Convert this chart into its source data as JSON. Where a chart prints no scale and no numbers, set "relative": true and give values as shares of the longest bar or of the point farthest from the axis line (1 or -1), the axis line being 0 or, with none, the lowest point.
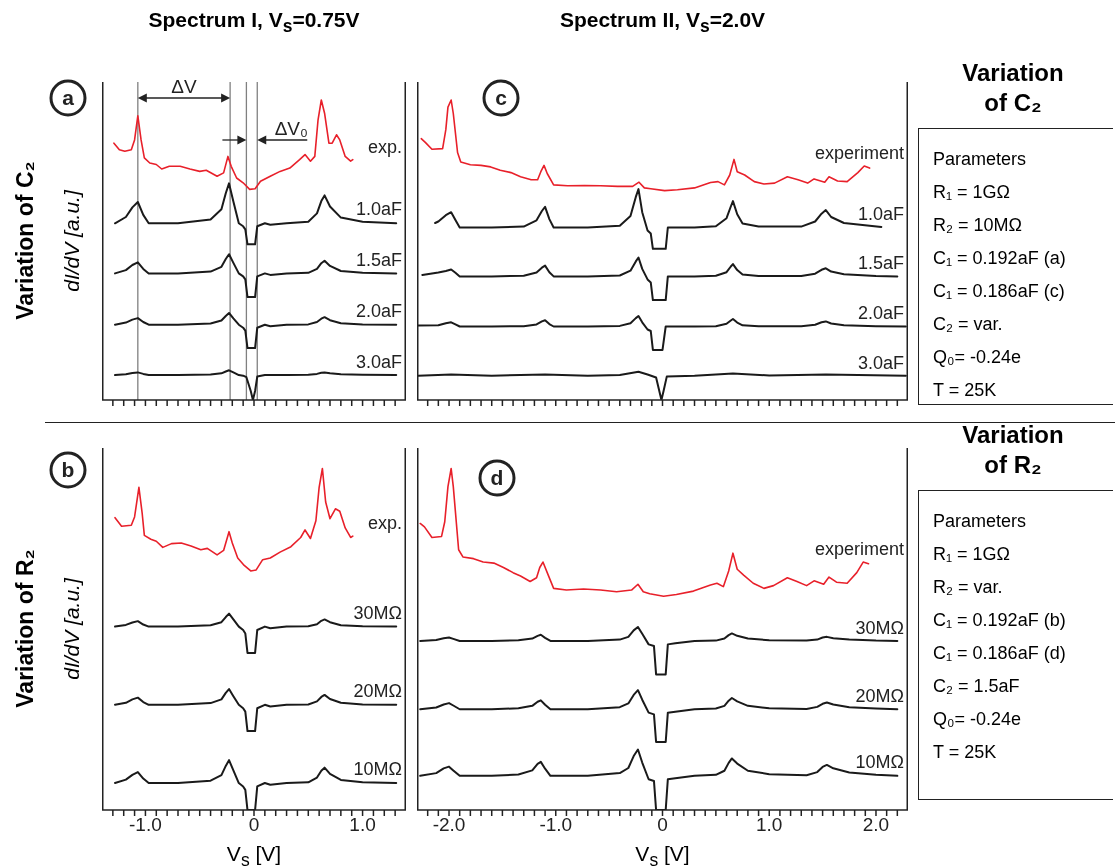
{
  "chart_data": [
    {
      "type": "line",
      "title": "Spectrum I, V$_{s}$=0.75V",
      "ylabel": "dI/dV [a.u.]",
      "relative": true,
      "tick_labels": false,
      "xlim": [
        -1.4,
        1.4
      ],
      "xticks": [
        {
          "value": -1.3,
          "label": null
        },
        {
          "value": -1.2,
          "label": null
        },
        {
          "value": -1.1,
          "label": null
        },
        {
          "value": -1,
          "label": null
        },
        {
          "value": -0.9,
          "label": null
        },
        {
          "value": -0.8,
          "label": null
        },
        {
          "value": -0.7,
          "label": null
        },
        {
          "value": -0.6,
          "label": null
        },
        {
          "value": -0.5,
          "label": null
        },
        {
          "value": -0.4,
          "label": null
        },
        {
          "value": -0.3,
          "label": null
        },
        {
          "value": -0.2,
          "label": null
        },
        {
          "value": -0.1,
          "label": null
        },
        {
          "value": 0,
          "label": null
        },
        {
          "value": 0.1,
          "label": null
        },
        {
          "value": 0.2,
          "label": null
        },
        {
          "value": 0.3,
          "label": null
        },
        {
          "value": 0.4,
          "label": null
        },
        {
          "value": 0.5,
          "label": null
        },
        {
          "value": 0.6,
          "label": null
        },
        {
          "value": 0.7,
          "label": null
        },
        {
          "value": 0.8,
          "label": null
        },
        {
          "value": 0.9,
          "label": null
        },
        {
          "value": 1,
          "label": null
        },
        {
          "value": 1.1,
          "label": null
        },
        {
          "value": 1.2,
          "label": null
        },
        {
          "value": 1.3,
          "label": null
        }
      ],
      "annotations": [
        "a",
        "Variation of C₂",
        "ΔV",
        "ΔV₀"
      ],
      "ref_lines": [
        {
          "axis": "x",
          "value": -1.07,
          "label": null,
          "color": "#808080"
        },
        {
          "axis": "x",
          "value": -0.22,
          "label": null,
          "color": "#808080"
        },
        {
          "axis": "x",
          "value": -0.07,
          "label": null,
          "color": "#808080"
        },
        {
          "axis": "x",
          "value": 0.03,
          "label": null,
          "color": "#808080"
        }
      ],
      "series": [
        {
          "name": "exp.",
          "color": "#e8202a",
          "x": [
            -1.29,
            -1.24,
            -1.19,
            -1.13,
            -1.1,
            -1.07,
            -1.04,
            -1.01,
            -0.96,
            -0.9,
            -0.85,
            -0.78,
            -0.68,
            -0.59,
            -0.5,
            -0.44,
            -0.34,
            -0.28,
            -0.24,
            -0.21,
            -0.16,
            -0.1,
            -0.04,
            0.01,
            0.06,
            0.15,
            0.24,
            0.33,
            0.42,
            0.47,
            0.52,
            0.56,
            0.59,
            0.62,
            0.65,
            0.69,
            0.72,
            0.76,
            0.79,
            0.84,
            0.89,
            0.91
          ],
          "values": [
            0.856,
            0.834,
            0.829,
            0.834,
            0.867,
            0.947,
            0.867,
            0.807,
            0.79,
            0.785,
            0.77,
            0.779,
            0.779,
            0.77,
            0.762,
            0.766,
            0.746,
            0.757,
            0.812,
            0.779,
            0.74,
            0.724,
            0.702,
            0.704,
            0.729,
            0.746,
            0.762,
            0.773,
            0.801,
            0.818,
            0.796,
            0.812,
            0.934,
            1.0,
            0.956,
            0.856,
            0.856,
            0.884,
            0.867,
            0.812,
            0.796,
            0.801
          ]
        },
        {
          "name": "1.0aF",
          "color": "#1a1a1a",
          "x": [
            -1.28,
            -1.18,
            -1.12,
            -1.07,
            -1.02,
            -0.97,
            -0.7,
            -0.4,
            -0.3,
            -0.26,
            -0.23,
            -0.19,
            -0.14,
            -0.1,
            -0.08,
            -0.06,
            0.01,
            0.03,
            0.1,
            0.15,
            0.3,
            0.5,
            0.58,
            0.62,
            0.65,
            0.7,
            0.8,
            1.0,
            1.31
          ],
          "values": [
            0.589,
            0.61,
            0.642,
            0.66,
            0.617,
            0.589,
            0.589,
            0.602,
            0.636,
            0.689,
            0.722,
            0.662,
            0.589,
            0.579,
            0.569,
            0.519,
            0.519,
            0.579,
            0.589,
            0.584,
            0.589,
            0.594,
            0.622,
            0.663,
            0.682,
            0.645,
            0.608,
            0.594,
            0.589
          ]
        },
        {
          "name": "1.5aF",
          "color": "#1a1a1a",
          "x": [
            -1.28,
            -1.18,
            -1.12,
            -1.07,
            -1.02,
            -0.97,
            -0.7,
            -0.4,
            -0.3,
            -0.26,
            -0.23,
            -0.19,
            -0.14,
            -0.1,
            -0.08,
            -0.06,
            0.01,
            0.03,
            0.1,
            0.15,
            0.3,
            0.5,
            0.58,
            0.62,
            0.65,
            0.7,
            0.8,
            1.0,
            1.31
          ],
          "values": [
            0.422,
            0.433,
            0.45,
            0.459,
            0.437,
            0.422,
            0.422,
            0.428,
            0.444,
            0.47,
            0.486,
            0.457,
            0.422,
            0.412,
            0.402,
            0.343,
            0.343,
            0.412,
            0.422,
            0.417,
            0.422,
            0.424,
            0.437,
            0.456,
            0.464,
            0.447,
            0.43,
            0.424,
            0.422
          ]
        },
        {
          "name": "2.0aF",
          "color": "#1a1a1a",
          "x": [
            -1.28,
            -1.18,
            -1.12,
            -1.07,
            -1.02,
            -0.97,
            -0.7,
            -0.4,
            -0.3,
            -0.26,
            -0.23,
            -0.19,
            -0.14,
            -0.1,
            -0.08,
            -0.06,
            0.01,
            0.03,
            0.1,
            0.15,
            0.3,
            0.5,
            0.58,
            0.62,
            0.65,
            0.7,
            0.8,
            1.0,
            1.31
          ],
          "values": [
            0.251,
            0.258,
            0.268,
            0.273,
            0.26,
            0.251,
            0.251,
            0.255,
            0.265,
            0.28,
            0.29,
            0.272,
            0.251,
            0.241,
            0.231,
            0.173,
            0.173,
            0.241,
            0.251,
            0.246,
            0.251,
            0.252,
            0.26,
            0.271,
            0.276,
            0.266,
            0.256,
            0.252,
            0.251
          ]
        },
        {
          "name": "3.0aF",
          "color": "#1a1a1a",
          "x": [
            -1.28,
            -1.18,
            -1.12,
            -1.07,
            -1.02,
            -0.97,
            -0.7,
            -0.4,
            -0.3,
            -0.26,
            -0.23,
            -0.19,
            -0.14,
            -0.1,
            -0.07,
            -0.03,
            -0.01,
            0.01,
            0.03,
            0.1,
            0.3,
            0.5,
            0.58,
            0.62,
            0.65,
            0.7,
            0.8,
            1.0,
            1.31
          ],
          "values": [
            0.083,
            0.086,
            0.09,
            0.092,
            0.087,
            0.083,
            0.083,
            0.085,
            0.089,
            0.095,
            0.099,
            0.092,
            0.083,
            0.081,
            0.076,
            0.03,
            0,
            0.03,
            0.078,
            0.083,
            0.083,
            0.084,
            0.087,
            0.091,
            0.092,
            0.089,
            0.086,
            0.084,
            0.083
          ]
        }
      ]
    },
    {
      "type": "line",
      "title": "Spectrum II, V$_{s}$=2.0V",
      "relative": true,
      "tick_labels": false,
      "xlim": [
        -2.3,
        2.3
      ],
      "xticks": [
        {
          "value": -2.2,
          "label": null
        },
        {
          "value": -2.1,
          "label": null
        },
        {
          "value": -2,
          "label": null
        },
        {
          "value": -1.9,
          "label": null
        },
        {
          "value": -1.8,
          "label": null
        },
        {
          "value": -1.7,
          "label": null
        },
        {
          "value": -1.6,
          "label": null
        },
        {
          "value": -1.5,
          "label": null
        },
        {
          "value": -1.4,
          "label": null
        },
        {
          "value": -1.3,
          "label": null
        },
        {
          "value": -1.2,
          "label": null
        },
        {
          "value": -1.1,
          "label": null
        },
        {
          "value": -1,
          "label": null
        },
        {
          "value": -0.9,
          "label": null
        },
        {
          "value": -0.8,
          "label": null
        },
        {
          "value": -0.7,
          "label": null
        },
        {
          "value": -0.6,
          "label": null
        },
        {
          "value": -0.5,
          "label": null
        },
        {
          "value": -0.4,
          "label": null
        },
        {
          "value": -0.3,
          "label": null
        },
        {
          "value": -0.2,
          "label": null
        },
        {
          "value": -0.1,
          "label": null
        },
        {
          "value": 0,
          "label": null
        },
        {
          "value": 0.1,
          "label": null
        },
        {
          "value": 0.2,
          "label": null
        },
        {
          "value": 0.3,
          "label": null
        },
        {
          "value": 0.4,
          "label": null
        },
        {
          "value": 0.5,
          "label": null
        },
        {
          "value": 0.6,
          "label": null
        },
        {
          "value": 0.7,
          "label": null
        },
        {
          "value": 0.8,
          "label": null
        },
        {
          "value": 0.9,
          "label": null
        },
        {
          "value": 1,
          "label": null
        },
        {
          "value": 1.1,
          "label": null
        },
        {
          "value": 1.2,
          "label": null
        },
        {
          "value": 1.3,
          "label": null
        },
        {
          "value": 1.4,
          "label": null
        },
        {
          "value": 1.5,
          "label": null
        },
        {
          "value": 1.6,
          "label": null
        },
        {
          "value": 1.7,
          "label": null
        },
        {
          "value": 1.8,
          "label": null
        },
        {
          "value": 1.9,
          "label": null
        },
        {
          "value": 2,
          "label": null
        },
        {
          "value": 2.1,
          "label": null
        },
        {
          "value": 2.2,
          "label": null
        }
      ],
      "annotations": [
        "c"
      ],
      "series": [
        {
          "name": "experiment",
          "color": "#e8202a",
          "x": [
            -2.26,
            -2.22,
            -2.16,
            -2.06,
            -2.03,
            -2.01,
            -1.98,
            -1.96,
            -1.92,
            -1.89,
            -1.8,
            -1.7,
            -1.61,
            -1.52,
            -1.42,
            -1.33,
            -1.23,
            -1.17,
            -1.14,
            -1.11,
            -1.08,
            -1.02,
            -0.89,
            -0.73,
            -0.58,
            -0.42,
            -0.28,
            -0.22,
            -0.17,
            -0.11,
            0.02,
            0.14,
            0.3,
            0.45,
            0.52,
            0.58,
            0.63,
            0.67,
            0.7,
            0.77,
            0.86,
            0.95,
            1.05,
            1.17,
            1.27,
            1.36,
            1.42,
            1.52,
            1.56,
            1.64,
            1.73,
            1.83,
            1.89,
            1.94
          ],
          "values": [
            0.871,
            0.858,
            0.836,
            0.838,
            0.901,
            0.976,
            1.0,
            0.955,
            0.825,
            0.793,
            0.784,
            0.782,
            0.777,
            0.766,
            0.758,
            0.744,
            0.734,
            0.734,
            0.761,
            0.782,
            0.755,
            0.717,
            0.714,
            0.715,
            0.714,
            0.712,
            0.712,
            0.726,
            0.707,
            0.704,
            0.698,
            0.701,
            0.707,
            0.725,
            0.728,
            0.717,
            0.75,
            0.802,
            0.761,
            0.75,
            0.728,
            0.72,
            0.723,
            0.744,
            0.734,
            0.723,
            0.737,
            0.726,
            0.744,
            0.73,
            0.728,
            0.758,
            0.78,
            0.773
          ]
        },
        {
          "name": "1.0aF",
          "color": "#1a1a1a",
          "x": [
            -2.13,
            -2.1,
            -2.03,
            -1.98,
            -1.94,
            -1.9,
            -1.6,
            -1.3,
            -1.18,
            -1.13,
            -1.1,
            -1.06,
            -1.02,
            -0.7,
            -0.4,
            -0.3,
            -0.25,
            -0.225,
            -0.19,
            -0.14,
            -0.11,
            -0.09,
            0.03,
            0.05,
            0.3,
            0.5,
            0.6,
            0.64,
            0.66,
            0.7,
            0.75,
            0.9,
            1.3,
            1.43,
            1.49,
            1.53,
            1.58,
            1.7,
            2.05
          ],
          "values": [
            0.59,
            0.595,
            0.616,
            0.626,
            0.6,
            0.575,
            0.575,
            0.578,
            0.599,
            0.63,
            0.644,
            0.603,
            0.575,
            0.575,
            0.581,
            0.613,
            0.677,
            0.703,
            0.626,
            0.565,
            0.555,
            0.504,
            0.504,
            0.575,
            0.575,
            0.579,
            0.606,
            0.645,
            0.663,
            0.619,
            0.588,
            0.578,
            0.578,
            0.595,
            0.621,
            0.633,
            0.61,
            0.59,
            0.577
          ]
        },
        {
          "name": "1.5aF",
          "color": "#1a1a1a",
          "x": [
            -2.25,
            -2.1,
            -2.03,
            -1.98,
            -1.94,
            -1.9,
            -1.6,
            -1.3,
            -1.18,
            -1.13,
            -1.1,
            -1.06,
            -1.02,
            -0.7,
            -0.4,
            -0.3,
            -0.25,
            -0.225,
            -0.19,
            -0.14,
            -0.11,
            -0.09,
            0.03,
            0.05,
            0.3,
            0.5,
            0.6,
            0.64,
            0.66,
            0.7,
            0.75,
            0.9,
            1.3,
            1.43,
            1.49,
            1.53,
            1.58,
            1.7,
            2.0,
            2.2
          ],
          "values": [
            0.417,
            0.425,
            0.43,
            0.435,
            0.424,
            0.412,
            0.412,
            0.414,
            0.425,
            0.441,
            0.448,
            0.426,
            0.412,
            0.412,
            0.415,
            0.431,
            0.462,
            0.475,
            0.437,
            0.402,
            0.392,
            0.333,
            0.333,
            0.412,
            0.412,
            0.414,
            0.426,
            0.445,
            0.453,
            0.433,
            0.418,
            0.413,
            0.413,
            0.421,
            0.434,
            0.439,
            0.428,
            0.419,
            0.413,
            0.412
          ]
        },
        {
          "name": "2.0aF",
          "color": "#1a1a1a",
          "x": [
            -2.29,
            -2.1,
            -2.03,
            -1.98,
            -1.94,
            -1.9,
            -1.6,
            -1.3,
            -1.18,
            -1.13,
            -1.1,
            -1.06,
            -1.02,
            -0.7,
            -0.4,
            -0.3,
            -0.25,
            -0.225,
            -0.19,
            -0.14,
            -0.11,
            -0.09,
            0.0,
            0.03,
            0.3,
            0.5,
            0.6,
            0.64,
            0.66,
            0.7,
            0.75,
            0.9,
            1.3,
            1.43,
            1.49,
            1.53,
            1.58,
            1.7,
            2.0,
            2.28
          ],
          "values": [
            0.248,
            0.249,
            0.256,
            0.259,
            0.252,
            0.245,
            0.245,
            0.246,
            0.252,
            0.262,
            0.266,
            0.253,
            0.245,
            0.245,
            0.247,
            0.256,
            0.273,
            0.28,
            0.259,
            0.235,
            0.23,
            0.167,
            0.167,
            0.245,
            0.245,
            0.246,
            0.254,
            0.265,
            0.27,
            0.258,
            0.249,
            0.246,
            0.246,
            0.251,
            0.259,
            0.262,
            0.255,
            0.249,
            0.246,
            0.245
          ]
        },
        {
          "name": "3.0aF",
          "color": "#1a1a1a",
          "x": [
            -2.29,
            -1.98,
            -1.6,
            -1.1,
            -0.7,
            -0.4,
            -0.225,
            -0.14,
            -0.06,
            -0.03,
            -0.01,
            0.01,
            0.04,
            0.3,
            0.66,
            1.0,
            1.53,
            2.28
          ],
          "values": [
            0.081,
            0.085,
            0.081,
            0.085,
            0.081,
            0.083,
            0.094,
            0.085,
            0.075,
            0.03,
            0,
            0.03,
            0.078,
            0.081,
            0.088,
            0.082,
            0.085,
            0.081
          ]
        }
      ]
    },
    {
      "type": "other",
      "title": "Variation of C₂",
      "annotations": [
        "Parameters",
        "R₁ = 1GΩ",
        "R₂ = 10MΩ",
        "C₁ = 0.192aF (a)",
        "C₁ = 0.186aF (c)",
        "C₂ = var.",
        "Q₀= -0.24e",
        "T = 25K"
      ]
    },
    {
      "type": "line",
      "ylabel": "dI/dV [a.u.]",
      "xlabel": "V$_{s}$ [V]",
      "relative": true,
      "tick_labels": "x",
      "xlim": [
        -1.4,
        1.4
      ],
      "xticks": [
        {
          "value": -1.3,
          "label": null
        },
        {
          "value": -1.2,
          "label": null
        },
        {
          "value": -1.1,
          "label": null
        },
        {
          "value": -1,
          "label": "-1.0"
        },
        {
          "value": -0.9,
          "label": null
        },
        {
          "value": -0.8,
          "label": null
        },
        {
          "value": -0.7,
          "label": null
        },
        {
          "value": -0.6,
          "label": null
        },
        {
          "value": -0.5,
          "label": null
        },
        {
          "value": -0.4,
          "label": null
        },
        {
          "value": -0.3,
          "label": null
        },
        {
          "value": -0.2,
          "label": null
        },
        {
          "value": -0.1,
          "label": null
        },
        0,
        {
          "value": 0.1,
          "label": null
        },
        {
          "value": 0.2,
          "label": null
        },
        {
          "value": 0.3,
          "label": null
        },
        {
          "value": 0.4,
          "label": null
        },
        {
          "value": 0.5,
          "label": null
        },
        {
          "value": 0.6,
          "label": null
        },
        {
          "value": 0.7,
          "label": null
        },
        {
          "value": 0.8,
          "label": null
        },
        {
          "value": 0.9,
          "label": null
        },
        {
          "value": 1,
          "label": "1.0"
        },
        {
          "value": 1.1,
          "label": null
        },
        {
          "value": 1.2,
          "label": null
        },
        {
          "value": 1.3,
          "label": null
        }
      ],
      "annotations": [
        "b",
        "Variation of R₂"
      ],
      "series": [
        {
          "name": "exp.",
          "color": "#e8202a",
          "x": [
            -1.28,
            -1.22,
            -1.13,
            -1.1,
            -1.06,
            -1.03,
            -1.01,
            -0.95,
            -0.9,
            -0.84,
            -0.76,
            -0.67,
            -0.58,
            -0.49,
            -0.43,
            -0.34,
            -0.28,
            -0.23,
            -0.2,
            -0.15,
            -0.09,
            -0.03,
            0.02,
            0.08,
            0.15,
            0.24,
            0.34,
            0.43,
            0.47,
            0.52,
            0.57,
            0.6,
            0.63,
            0.66,
            0.7,
            0.75,
            0.79,
            0.84,
            0.89,
            0.91
          ],
          "values": [
            0.856,
            0.831,
            0.834,
            0.858,
            0.945,
            0.869,
            0.804,
            0.793,
            0.787,
            0.769,
            0.78,
            0.782,
            0.773,
            0.762,
            0.766,
            0.747,
            0.76,
            0.815,
            0.782,
            0.738,
            0.716,
            0.7,
            0.703,
            0.733,
            0.738,
            0.755,
            0.771,
            0.798,
            0.82,
            0.795,
            0.847,
            0.945,
            1.0,
            0.902,
            0.853,
            0.882,
            0.875,
            0.826,
            0.798,
            0.802
          ]
        },
        {
          "name": "30MΩ",
          "color": "#1a1a1a",
          "x": [
            -1.28,
            -1.18,
            -1.12,
            -1.07,
            -1.02,
            -0.97,
            -0.7,
            -0.4,
            -0.3,
            -0.26,
            -0.23,
            -0.19,
            -0.14,
            -0.1,
            -0.08,
            -0.06,
            0.01,
            0.03,
            0.1,
            0.15,
            0.3,
            0.5,
            0.58,
            0.62,
            0.65,
            0.7,
            0.8,
            1.0,
            1.31
          ],
          "values": [
            0.537,
            0.542,
            0.549,
            0.553,
            0.543,
            0.537,
            0.537,
            0.541,
            0.55,
            0.565,
            0.575,
            0.558,
            0.537,
            0.527,
            0.517,
            0.46,
            0.46,
            0.527,
            0.537,
            0.532,
            0.537,
            0.538,
            0.544,
            0.554,
            0.558,
            0.55,
            0.541,
            0.538,
            0.537
          ]
        },
        {
          "name": "20MΩ",
          "color": "#1a1a1a",
          "x": [
            -1.28,
            -1.18,
            -1.12,
            -1.07,
            -1.02,
            -0.97,
            -0.7,
            -0.4,
            -0.3,
            -0.26,
            -0.23,
            -0.19,
            -0.14,
            -0.1,
            -0.08,
            -0.06,
            0.01,
            0.03,
            0.1,
            0.15,
            0.3,
            0.5,
            0.58,
            0.62,
            0.65,
            0.7,
            0.8,
            1.0,
            1.31
          ],
          "values": [
            0.308,
            0.314,
            0.324,
            0.329,
            0.316,
            0.308,
            0.308,
            0.313,
            0.324,
            0.343,
            0.354,
            0.333,
            0.308,
            0.298,
            0.288,
            0.231,
            0.231,
            0.298,
            0.308,
            0.303,
            0.308,
            0.309,
            0.318,
            0.331,
            0.337,
            0.325,
            0.314,
            0.309,
            0.308
          ]
        },
        {
          "name": "10MΩ",
          "color": "#1a1a1a",
          "x": [
            -1.28,
            -1.18,
            -1.12,
            -1.07,
            -1.02,
            -0.97,
            -0.7,
            -0.4,
            -0.3,
            -0.26,
            -0.23,
            -0.19,
            -0.14,
            -0.1,
            -0.08,
            -0.06,
            0.01,
            0.03,
            0.1,
            0.15,
            0.3,
            0.5,
            0.58,
            0.62,
            0.65,
            0.7,
            0.8,
            1.0,
            1.31
          ],
          "values": [
            0.079,
            0.089,
            0.103,
            0.111,
            0.092,
            0.079,
            0.079,
            0.086,
            0.102,
            0.129,
            0.146,
            0.116,
            0.079,
            0.069,
            0.059,
            0,
            0,
            0.069,
            0.079,
            0.074,
            0.079,
            0.081,
            0.095,
            0.115,
            0.124,
            0.106,
            0.088,
            0.081,
            0.079
          ]
        }
      ]
    },
    {
      "type": "line",
      "xlabel": "V$_{s}$ [V]",
      "relative": true,
      "tick_labels": "x",
      "xlim": [
        -2.3,
        2.3
      ],
      "xticks": [
        {
          "value": -2.2,
          "label": null
        },
        {
          "value": -2.1,
          "label": null
        },
        {
          "value": -2,
          "label": "-2.0"
        },
        {
          "value": -1.9,
          "label": null
        },
        {
          "value": -1.8,
          "label": null
        },
        {
          "value": -1.7,
          "label": null
        },
        {
          "value": -1.6,
          "label": null
        },
        {
          "value": -1.5,
          "label": null
        },
        {
          "value": -1.4,
          "label": null
        },
        {
          "value": -1.3,
          "label": null
        },
        {
          "value": -1.2,
          "label": null
        },
        {
          "value": -1.1,
          "label": null
        },
        {
          "value": -1,
          "label": "-1.0"
        },
        {
          "value": -0.9,
          "label": null
        },
        {
          "value": -0.8,
          "label": null
        },
        {
          "value": -0.7,
          "label": null
        },
        {
          "value": -0.6,
          "label": null
        },
        {
          "value": -0.5,
          "label": null
        },
        {
          "value": -0.4,
          "label": null
        },
        {
          "value": -0.3,
          "label": null
        },
        {
          "value": -0.2,
          "label": null
        },
        {
          "value": -0.1,
          "label": null
        },
        0,
        {
          "value": 0.1,
          "label": null
        },
        {
          "value": 0.2,
          "label": null
        },
        {
          "value": 0.3,
          "label": null
        },
        {
          "value": 0.4,
          "label": null
        },
        {
          "value": 0.5,
          "label": null
        },
        {
          "value": 0.6,
          "label": null
        },
        {
          "value": 0.7,
          "label": null
        },
        {
          "value": 0.8,
          "label": null
        },
        {
          "value": 0.9,
          "label": null
        },
        {
          "value": 1,
          "label": "1.0"
        },
        {
          "value": 1.1,
          "label": null
        },
        {
          "value": 1.2,
          "label": null
        },
        {
          "value": 1.3,
          "label": null
        },
        {
          "value": 1.4,
          "label": null
        },
        {
          "value": 1.5,
          "label": null
        },
        {
          "value": 1.6,
          "label": null
        },
        {
          "value": 1.7,
          "label": null
        },
        {
          "value": 1.8,
          "label": null
        },
        {
          "value": 1.9,
          "label": null
        },
        {
          "value": 2,
          "label": "2.0"
        },
        {
          "value": 2.1,
          "label": null
        },
        {
          "value": 2.2,
          "label": null
        }
      ],
      "annotations": [
        "d"
      ],
      "series": [
        {
          "name": "experiment",
          "color": "#e8202a",
          "x": [
            -2.27,
            -2.23,
            -2.16,
            -2.07,
            -2.04,
            -2.01,
            -1.98,
            -1.96,
            -1.91,
            -1.87,
            -1.77,
            -1.68,
            -1.58,
            -1.49,
            -1.4,
            -1.33,
            -1.24,
            -1.18,
            -1.15,
            -1.12,
            -1.08,
            -1.02,
            -0.9,
            -0.74,
            -0.58,
            -0.43,
            -0.29,
            -0.23,
            -0.18,
            -0.12,
            0.01,
            0.13,
            0.29,
            0.45,
            0.51,
            0.57,
            0.62,
            0.66,
            0.7,
            0.76,
            0.85,
            0.95,
            1.04,
            1.17,
            1.26,
            1.35,
            1.42,
            1.51,
            1.56,
            1.63,
            1.73,
            1.82,
            1.88,
            1.93
          ],
          "values": [
            0.839,
            0.829,
            0.798,
            0.801,
            0.844,
            0.947,
            1.0,
            0.947,
            0.762,
            0.741,
            0.736,
            0.726,
            0.723,
            0.71,
            0.695,
            0.685,
            0.669,
            0.68,
            0.71,
            0.726,
            0.695,
            0.649,
            0.644,
            0.647,
            0.644,
            0.639,
            0.644,
            0.661,
            0.639,
            0.633,
            0.626,
            0.631,
            0.641,
            0.659,
            0.664,
            0.654,
            0.7,
            0.752,
            0.705,
            0.688,
            0.664,
            0.649,
            0.657,
            0.68,
            0.669,
            0.657,
            0.671,
            0.661,
            0.682,
            0.667,
            0.664,
            0.695,
            0.726,
            0.721
          ]
        },
        {
          "name": "30MΩ",
          "color": "#1a1a1a",
          "x": [
            -2.27,
            -2.12,
            -2.05,
            -2.0,
            -1.96,
            -1.9,
            -1.6,
            -1.35,
            -1.22,
            -1.17,
            -1.14,
            -1.1,
            -1.05,
            -0.7,
            -0.4,
            -0.32,
            -0.27,
            -0.23,
            -0.19,
            -0.13,
            -0.08,
            -0.06,
            0.03,
            0.05,
            0.12,
            0.3,
            0.5,
            0.58,
            0.62,
            0.65,
            0.7,
            0.8,
            1.0,
            1.35,
            1.45,
            1.5,
            1.54,
            1.6,
            1.75,
            2.0,
            2.2
          ],
          "values": [
            0.495,
            0.498,
            0.503,
            0.505,
            0.501,
            0.495,
            0.495,
            0.497,
            0.502,
            0.51,
            0.513,
            0.504,
            0.495,
            0.495,
            0.499,
            0.507,
            0.526,
            0.536,
            0.516,
            0.485,
            0.48,
            0.397,
            0.397,
            0.485,
            0.488,
            0.495,
            0.496,
            0.502,
            0.512,
            0.517,
            0.51,
            0.502,
            0.497,
            0.496,
            0.499,
            0.505,
            0.507,
            0.503,
            0.499,
            0.496,
            0.495
          ]
        },
        {
          "name": "20MΩ",
          "color": "#1a1a1a",
          "x": [
            -2.27,
            -2.12,
            -2.05,
            -2.0,
            -1.96,
            -1.9,
            -1.6,
            -1.35,
            -1.22,
            -1.17,
            -1.14,
            -1.1,
            -1.05,
            -0.7,
            -0.4,
            -0.32,
            -0.27,
            -0.23,
            -0.19,
            -0.13,
            -0.08,
            -0.06,
            0.03,
            0.05,
            0.12,
            0.3,
            0.5,
            0.58,
            0.62,
            0.65,
            0.7,
            0.8,
            1.0,
            1.35,
            1.45,
            1.5,
            1.54,
            1.6,
            1.75,
            2.0,
            2.2
          ],
          "values": [
            0.295,
            0.3,
            0.309,
            0.313,
            0.306,
            0.295,
            0.295,
            0.298,
            0.305,
            0.317,
            0.321,
            0.308,
            0.295,
            0.295,
            0.301,
            0.312,
            0.337,
            0.351,
            0.323,
            0.285,
            0.28,
            0.199,
            0.199,
            0.285,
            0.288,
            0.295,
            0.297,
            0.305,
            0.32,
            0.328,
            0.318,
            0.305,
            0.298,
            0.296,
            0.302,
            0.311,
            0.315,
            0.309,
            0.301,
            0.297,
            0.295
          ]
        },
        {
          "name": "10MΩ",
          "color": "#1a1a1a",
          "x": [
            -2.27,
            -2.12,
            -2.05,
            -2.0,
            -1.96,
            -1.9,
            -1.6,
            -1.35,
            -1.22,
            -1.17,
            -1.14,
            -1.1,
            -1.05,
            -0.7,
            -0.4,
            -0.32,
            -0.27,
            -0.23,
            -0.19,
            -0.13,
            -0.08,
            -0.06,
            0.03,
            0.05,
            0.12,
            0.3,
            0.5,
            0.58,
            0.62,
            0.65,
            0.7,
            0.8,
            1.0,
            1.35,
            1.45,
            1.5,
            1.54,
            1.6,
            1.75,
            2.0,
            2.2
          ],
          "values": [
            0.1,
            0.108,
            0.122,
            0.127,
            0.116,
            0.1,
            0.1,
            0.104,
            0.116,
            0.135,
            0.141,
            0.121,
            0.1,
            0.1,
            0.108,
            0.123,
            0.158,
            0.177,
            0.139,
            0.09,
            0.085,
            0,
            0,
            0.09,
            0.093,
            0.1,
            0.103,
            0.115,
            0.138,
            0.151,
            0.136,
            0.115,
            0.105,
            0.102,
            0.111,
            0.126,
            0.132,
            0.122,
            0.11,
            0.103,
            0.1
          ]
        }
      ]
    },
    {
      "type": "other",
      "title": "Variation of R₂",
      "annotations": [
        "Parameters",
        "R₁ = 1GΩ",
        "R₂ = var.",
        "C₁ = 0.192aF (b)",
        "C₁ = 0.186aF (d)",
        "C₂ = 1.5aF",
        "Q₀= -0.24e",
        "T = 25K"
      ]
    }
  ]
}
